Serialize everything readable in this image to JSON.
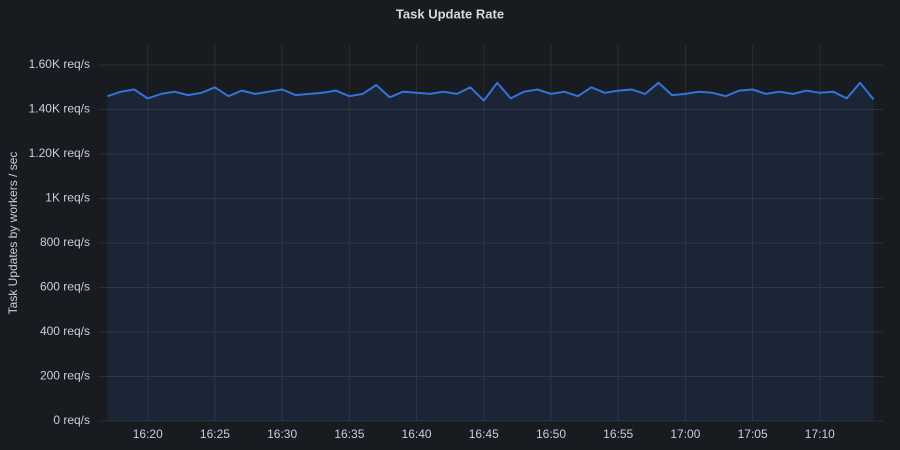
{
  "chart_data": {
    "type": "area",
    "title": "Task Update Rate",
    "y_label": "Task Updates by workers / sec",
    "x": [
      977,
      978,
      979,
      980,
      981,
      982,
      983,
      984,
      985,
      986,
      987,
      988,
      989,
      990,
      991,
      992,
      993,
      994,
      995,
      996,
      997,
      998,
      999,
      1000,
      1001,
      1002,
      1003,
      1004,
      1005,
      1006,
      1007,
      1008,
      1009,
      1010,
      1011,
      1012,
      1013,
      1014,
      1015,
      1016,
      1017,
      1018,
      1019,
      1020,
      1021,
      1022,
      1023,
      1024,
      1025,
      1026,
      1027,
      1028,
      1029,
      1030,
      1031,
      1032,
      1033,
      1034
    ],
    "series": [
      {
        "name": "Task Updates",
        "color": "#3274d9",
        "values": [
          1460,
          1480,
          1490,
          1450,
          1470,
          1480,
          1465,
          1475,
          1500,
          1460,
          1485,
          1470,
          1480,
          1490,
          1465,
          1470,
          1475,
          1485,
          1460,
          1470,
          1510,
          1455,
          1480,
          1475,
          1470,
          1480,
          1470,
          1500,
          1440,
          1520,
          1450,
          1480,
          1490,
          1470,
          1480,
          1460,
          1500,
          1475,
          1485,
          1490,
          1470,
          1520,
          1465,
          1470,
          1480,
          1475,
          1460,
          1485,
          1490,
          1470,
          1480,
          1470,
          1485,
          1475,
          1480,
          1450,
          1520,
          1445
        ]
      }
    ],
    "xlim": [
      976.3,
      1034.7
    ],
    "xticks": [
      {
        "value": 980,
        "label": "16:20"
      },
      {
        "value": 985,
        "label": "16:25"
      },
      {
        "value": 990,
        "label": "16:30"
      },
      {
        "value": 995,
        "label": "16:35"
      },
      {
        "value": 1000,
        "label": "16:40"
      },
      {
        "value": 1005,
        "label": "16:45"
      },
      {
        "value": 1010,
        "label": "16:50"
      },
      {
        "value": 1015,
        "label": "16:55"
      },
      {
        "value": 1020,
        "label": "17:00"
      },
      {
        "value": 1025,
        "label": "17:05"
      },
      {
        "value": 1030,
        "label": "17:10"
      }
    ],
    "ylim": [
      0,
      1690
    ],
    "yticks": [
      {
        "value": 0,
        "label": "0 req/s"
      },
      {
        "value": 200,
        "label": "200 req/s"
      },
      {
        "value": 400,
        "label": "400 req/s"
      },
      {
        "value": 600,
        "label": "600 req/s"
      },
      {
        "value": 800,
        "label": "800 req/s"
      },
      {
        "value": 1000,
        "label": "1K req/s"
      },
      {
        "value": 1200,
        "label": "1.20K req/s"
      },
      {
        "value": 1400,
        "label": "1.40K req/s"
      },
      {
        "value": 1600,
        "label": "1.60K req/s"
      }
    ],
    "grid": true
  }
}
